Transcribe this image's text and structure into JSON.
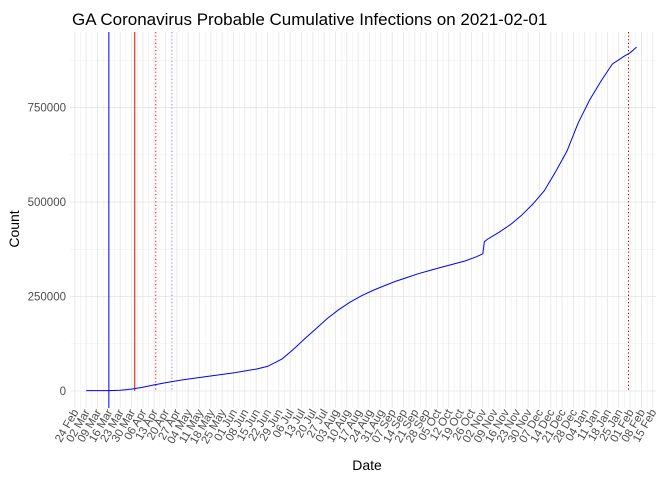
{
  "chart_data": {
    "type": "line",
    "title": "GA Coronavirus Probable Cumulative Infections on 2021-02-01",
    "xlabel": "Date",
    "ylabel": "Count",
    "x_range": [
      "2020-02-21",
      "2021-02-17"
    ],
    "ylim": [
      -45000,
      950000
    ],
    "y_ticks": [
      0,
      250000,
      500000,
      750000
    ],
    "y_tick_labels": [
      "0",
      "250000",
      "500000",
      "750000"
    ],
    "x_tick_dates": [
      "2020-02-24",
      "2020-03-02",
      "2020-03-09",
      "2020-03-16",
      "2020-03-23",
      "2020-03-30",
      "2020-04-06",
      "2020-04-13",
      "2020-04-20",
      "2020-04-27",
      "2020-05-04",
      "2020-05-11",
      "2020-05-18",
      "2020-05-25",
      "2020-06-01",
      "2020-06-08",
      "2020-06-15",
      "2020-06-22",
      "2020-06-29",
      "2020-07-06",
      "2020-07-13",
      "2020-07-20",
      "2020-07-27",
      "2020-08-03",
      "2020-08-10",
      "2020-08-17",
      "2020-08-24",
      "2020-08-31",
      "2020-09-07",
      "2020-09-14",
      "2020-09-21",
      "2020-09-28",
      "2020-10-05",
      "2020-10-12",
      "2020-10-19",
      "2020-10-26",
      "2020-11-02",
      "2020-11-09",
      "2020-11-16",
      "2020-11-23",
      "2020-11-30",
      "2020-12-07",
      "2020-12-14",
      "2020-12-21",
      "2020-12-28",
      "2021-01-04",
      "2021-01-11",
      "2021-01-18",
      "2021-01-25",
      "2021-02-01",
      "2021-02-08",
      "2021-02-15"
    ],
    "x_tick_labels": [
      "24 Feb",
      "02 Mar",
      "09 Mar",
      "16 Mar",
      "23 Mar",
      "30 Mar",
      "06 Apr",
      "13 Apr",
      "20 Apr",
      "27 Apr",
      "04 May",
      "11 May",
      "18 May",
      "25 May",
      "01 Jun",
      "08 Jun",
      "15 Jun",
      "22 Jun",
      "29 Jun",
      "06 Jul",
      "13 Jul",
      "20 Jul",
      "27 Jul",
      "03 Aug",
      "10 Aug",
      "17 Aug",
      "24 Aug",
      "31 Aug",
      "07 Sep",
      "14 Sep",
      "21 Sep",
      "28 Sep",
      "05 Oct",
      "12 Oct",
      "19 Oct",
      "26 Oct",
      "02 Nov",
      "09 Nov",
      "16 Nov",
      "23 Nov",
      "30 Nov",
      "07 Dec",
      "14 Dec",
      "21 Dec",
      "28 Dec",
      "04 Jan",
      "11 Jan",
      "18 Jan",
      "25 Jan",
      "01 Feb",
      "08 Feb",
      "15 Feb"
    ],
    "series": [
      {
        "name": "Probable cumulative infections",
        "color": "#0000ff",
        "x": [
          "2020-03-02",
          "2020-03-16",
          "2020-03-23",
          "2020-03-30",
          "2020-04-06",
          "2020-04-13",
          "2020-04-20",
          "2020-05-01",
          "2020-05-15",
          "2020-06-01",
          "2020-06-15",
          "2020-06-22",
          "2020-07-01",
          "2020-07-08",
          "2020-07-15",
          "2020-07-22",
          "2020-07-29",
          "2020-08-05",
          "2020-08-12",
          "2020-08-19",
          "2020-08-26",
          "2020-09-02",
          "2020-09-09",
          "2020-09-16",
          "2020-09-23",
          "2020-10-01",
          "2020-10-08",
          "2020-10-15",
          "2020-10-22",
          "2020-10-29",
          "2020-11-02",
          "2020-11-03",
          "2020-11-05",
          "2020-11-12",
          "2020-11-19",
          "2020-11-26",
          "2020-12-03",
          "2020-12-10",
          "2020-12-17",
          "2020-12-24",
          "2020-12-31",
          "2021-01-07",
          "2021-01-14",
          "2021-01-21",
          "2021-01-28",
          "2021-02-01",
          "2021-02-05"
        ],
        "y": [
          1000,
          1000,
          2000,
          5000,
          10000,
          16000,
          22000,
          30000,
          38000,
          48000,
          58000,
          65000,
          85000,
          110000,
          138000,
          165000,
          192000,
          215000,
          235000,
          252000,
          266000,
          278000,
          290000,
          300000,
          310000,
          320000,
          328000,
          336000,
          344000,
          355000,
          363000,
          395000,
          402000,
          420000,
          440000,
          465000,
          495000,
          530000,
          580000,
          635000,
          710000,
          770000,
          820000,
          865000,
          885000,
          895000,
          910000
        ]
      }
    ],
    "reference_lines": [
      {
        "date": "2020-03-16",
        "color": "#0000ff",
        "style": "solid",
        "y_from": -45000,
        "y_to": 950000
      },
      {
        "date": "2020-04-01",
        "color": "#ff0000",
        "style": "solid",
        "y_from": 0,
        "y_to": 950000
      },
      {
        "date": "2020-04-14",
        "color": "#ff0000",
        "style": "dotted",
        "y_from": 0,
        "y_to": 950000
      },
      {
        "date": "2020-04-24",
        "color": "#8a8aff",
        "style": "dotted",
        "y_from": 0,
        "y_to": 950000
      },
      {
        "date": "2021-01-31",
        "color": "#8b0000",
        "style": "dotted",
        "y_from": 0,
        "y_to": 950000
      }
    ],
    "grid": true,
    "legend": "none"
  }
}
